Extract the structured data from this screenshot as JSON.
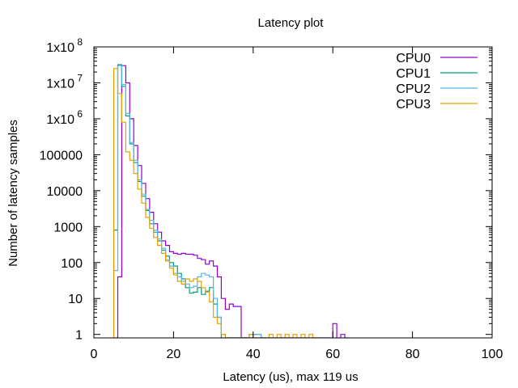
{
  "chart_data": {
    "type": "line",
    "style": "step",
    "title": "Latency plot",
    "xlabel": "Latency (us), max 119 us",
    "ylabel": "Number of latency samples",
    "xlim": [
      0,
      100
    ],
    "ylim": [
      0.8,
      100000000
    ],
    "yscale": "log",
    "grid": false,
    "legend_position": "top-right",
    "x_ticks": [
      {
        "value": 0,
        "label": "0"
      },
      {
        "value": 20,
        "label": "20"
      },
      {
        "value": 40,
        "label": "40"
      },
      {
        "value": 60,
        "label": "60"
      },
      {
        "value": 80,
        "label": "80"
      },
      {
        "value": 100,
        "label": "100"
      }
    ],
    "y_ticks": [
      {
        "value": 1,
        "label": "1"
      },
      {
        "value": 10,
        "label": "10"
      },
      {
        "value": 100,
        "label": "100"
      },
      {
        "value": 1000,
        "label": "1000"
      },
      {
        "value": 10000,
        "label": "10000"
      },
      {
        "value": 100000,
        "label": "100000"
      },
      {
        "value": 1000000,
        "base": "1x10",
        "exp": "6"
      },
      {
        "value": 10000000,
        "base": "1x10",
        "exp": "7"
      },
      {
        "value": 100000000,
        "base": "1x10",
        "exp": "8"
      }
    ],
    "series": [
      {
        "name": "CPU0",
        "color": "#9400d3",
        "points": [
          [
            5,
            0
          ],
          [
            6,
            40
          ],
          [
            7,
            30000000
          ],
          [
            8,
            10000000
          ],
          [
            9,
            1000000
          ],
          [
            10,
            180000
          ],
          [
            11,
            50000
          ],
          [
            12,
            16000
          ],
          [
            13,
            6000
          ],
          [
            14,
            2500
          ],
          [
            15,
            1200
          ],
          [
            16,
            700
          ],
          [
            17,
            400
          ],
          [
            18,
            300
          ],
          [
            19,
            200
          ],
          [
            20,
            180
          ],
          [
            21,
            170
          ],
          [
            22,
            180
          ],
          [
            23,
            170
          ],
          [
            24,
            170
          ],
          [
            25,
            160
          ],
          [
            26,
            130
          ],
          [
            27,
            120
          ],
          [
            28,
            90
          ],
          [
            29,
            110
          ],
          [
            30,
            80
          ],
          [
            31,
            40
          ],
          [
            32,
            10
          ],
          [
            33,
            5
          ],
          [
            34,
            7
          ],
          [
            35,
            6
          ],
          [
            36,
            6
          ],
          [
            37,
            0
          ],
          [
            59,
            0
          ],
          [
            60,
            2
          ],
          [
            61,
            0
          ],
          [
            62,
            1
          ],
          [
            63,
            0
          ]
        ]
      },
      {
        "name": "CPU1",
        "color": "#009e73",
        "points": [
          [
            5,
            800
          ],
          [
            6,
            32000000
          ],
          [
            7,
            8000000
          ],
          [
            8,
            1200000
          ],
          [
            9,
            200000
          ],
          [
            10,
            60000
          ],
          [
            11,
            18000
          ],
          [
            12,
            7000
          ],
          [
            13,
            2800
          ],
          [
            14,
            1200
          ],
          [
            15,
            700
          ],
          [
            16,
            400
          ],
          [
            17,
            220
          ],
          [
            18,
            150
          ],
          [
            19,
            100
          ],
          [
            20,
            80
          ],
          [
            21,
            50
          ],
          [
            22,
            35
          ],
          [
            23,
            20
          ],
          [
            24,
            14
          ],
          [
            25,
            15
          ],
          [
            26,
            20
          ],
          [
            27,
            13
          ],
          [
            28,
            16
          ],
          [
            29,
            20
          ],
          [
            30,
            7
          ],
          [
            31,
            3
          ],
          [
            32,
            0
          ],
          [
            39,
            1
          ],
          [
            40,
            1
          ],
          [
            41,
            1
          ],
          [
            42,
            0
          ]
        ]
      },
      {
        "name": "CPU2",
        "color": "#56b4e9",
        "points": [
          [
            5,
            60
          ],
          [
            6,
            30000000
          ],
          [
            7,
            9000000
          ],
          [
            8,
            1400000
          ],
          [
            9,
            220000
          ],
          [
            10,
            70000
          ],
          [
            11,
            20000
          ],
          [
            12,
            8000
          ],
          [
            13,
            3000
          ],
          [
            14,
            1500
          ],
          [
            15,
            800
          ],
          [
            16,
            450
          ],
          [
            17,
            250
          ],
          [
            18,
            120
          ],
          [
            19,
            80
          ],
          [
            20,
            50
          ],
          [
            21,
            40
          ],
          [
            22,
            30
          ],
          [
            23,
            25
          ],
          [
            24,
            20
          ],
          [
            25,
            22
          ],
          [
            26,
            40
          ],
          [
            27,
            50
          ],
          [
            28,
            45
          ],
          [
            29,
            40
          ],
          [
            30,
            10
          ],
          [
            31,
            3
          ],
          [
            32,
            1
          ],
          [
            33,
            0
          ],
          [
            39,
            1
          ],
          [
            40,
            1
          ],
          [
            41,
            1
          ],
          [
            42,
            0
          ]
        ]
      },
      {
        "name": "CPU3",
        "color": "#e69f00",
        "points": [
          [
            4,
            0
          ],
          [
            5,
            25000000
          ],
          [
            6,
            5000000
          ],
          [
            7,
            800000
          ],
          [
            8,
            120000
          ],
          [
            9,
            70000
          ],
          [
            10,
            30000
          ],
          [
            11,
            11000
          ],
          [
            12,
            4500
          ],
          [
            13,
            1800
          ],
          [
            14,
            900
          ],
          [
            15,
            500
          ],
          [
            16,
            300
          ],
          [
            17,
            180
          ],
          [
            18,
            110
          ],
          [
            19,
            70
          ],
          [
            20,
            45
          ],
          [
            21,
            30
          ],
          [
            22,
            25
          ],
          [
            23,
            35
          ],
          [
            24,
            30
          ],
          [
            25,
            35
          ],
          [
            26,
            30
          ],
          [
            27,
            20
          ],
          [
            28,
            15
          ],
          [
            29,
            8
          ],
          [
            30,
            3
          ],
          [
            31,
            2
          ],
          [
            32,
            1
          ],
          [
            33,
            0
          ],
          [
            39,
            1
          ],
          [
            40,
            0
          ],
          [
            44,
            1
          ],
          [
            45,
            0
          ],
          [
            46,
            1
          ],
          [
            47,
            0
          ],
          [
            48,
            1
          ],
          [
            49,
            0
          ],
          [
            50,
            1
          ],
          [
            51,
            0
          ],
          [
            52,
            1
          ],
          [
            53,
            0
          ],
          [
            54,
            1
          ],
          [
            55,
            0
          ]
        ]
      }
    ]
  }
}
